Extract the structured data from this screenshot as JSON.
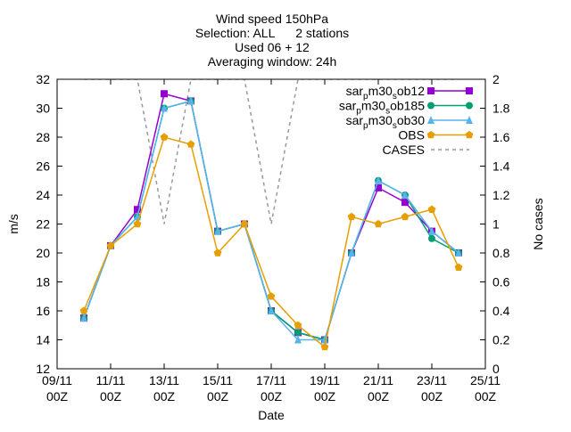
{
  "chart_data": {
    "type": "line",
    "title_lines": [
      "Wind speed 150hPa",
      "Selection: ALL      2 stations",
      "Used 06 + 12",
      "Averaging window: 24h"
    ],
    "xlabel": "Date",
    "ylabel": "m/s",
    "y2label": "No cases",
    "ylim": [
      12,
      32
    ],
    "y2lim": [
      0,
      2
    ],
    "xlim": [
      0,
      16
    ],
    "yticks": [
      12,
      14,
      16,
      18,
      20,
      22,
      24,
      26,
      28,
      30,
      32
    ],
    "y2ticks": [
      0,
      0.2,
      0.4,
      0.6,
      0.8,
      1,
      1.2,
      1.4,
      1.6,
      1.8,
      2
    ],
    "xticks": [
      {
        "x": 0,
        "label": "09/11",
        "sub": "00Z"
      },
      {
        "x": 2,
        "label": "11/11",
        "sub": "00Z"
      },
      {
        "x": 4,
        "label": "13/11",
        "sub": "00Z"
      },
      {
        "x": 6,
        "label": "15/11",
        "sub": "00Z"
      },
      {
        "x": 8,
        "label": "17/11",
        "sub": "00Z"
      },
      {
        "x": 10,
        "label": "19/11",
        "sub": "00Z"
      },
      {
        "x": 12,
        "label": "21/11",
        "sub": "00Z"
      },
      {
        "x": 14,
        "label": "23/11",
        "sub": "00Z"
      },
      {
        "x": 16,
        "label": "25/11",
        "sub": "00Z"
      }
    ],
    "legend_position": "top-right",
    "series": [
      {
        "name": "sar_p m30_s ob12",
        "legend_parts": [
          "sar",
          "p",
          "m30",
          "s",
          "ob12"
        ],
        "color": "#9400d3",
        "marker": "filled-square",
        "x": [
          1,
          2,
          3,
          4,
          5,
          6,
          7,
          8,
          9,
          10,
          11,
          12,
          13,
          14,
          15
        ],
        "y": [
          15.5,
          20.5,
          23.0,
          31.0,
          30.5,
          21.5,
          22.0,
          16.0,
          14.5,
          14.0,
          20.0,
          24.5,
          23.5,
          21.5,
          20.0
        ]
      },
      {
        "name": "sar_p m30_s ob185",
        "legend_parts": [
          "sar",
          "p",
          "m30",
          "s",
          "ob185"
        ],
        "color": "#009e73",
        "marker": "filled-circle",
        "x": [
          1,
          2,
          3,
          4,
          5,
          6,
          7,
          8,
          9,
          10,
          11,
          12,
          13,
          14,
          15
        ],
        "y": [
          15.5,
          20.5,
          22.5,
          30.0,
          30.5,
          21.5,
          22.0,
          16.0,
          14.5,
          14.0,
          20.0,
          25.0,
          24.0,
          21.0,
          20.0
        ]
      },
      {
        "name": "sar_p m30_s ob30",
        "legend_parts": [
          "sar",
          "p",
          "m30",
          "s",
          "ob30"
        ],
        "color": "#56b4e9",
        "marker": "filled-triangle",
        "x": [
          1,
          2,
          3,
          4,
          5,
          6,
          7,
          8,
          9,
          10,
          11,
          12,
          13,
          14,
          15
        ],
        "y": [
          15.5,
          20.5,
          22.5,
          30.0,
          30.5,
          21.5,
          22.0,
          16.0,
          14.0,
          14.0,
          20.0,
          25.0,
          24.0,
          21.5,
          20.0
        ]
      },
      {
        "name": "OBS",
        "color": "#e69f00",
        "marker": "filled-pentagon",
        "x": [
          1,
          2,
          3,
          4,
          5,
          6,
          7,
          8,
          9,
          10,
          11,
          12,
          13,
          14,
          15
        ],
        "y": [
          16.0,
          20.5,
          22.0,
          28.0,
          27.5,
          20.0,
          22.0,
          17.0,
          15.0,
          13.5,
          22.5,
          22.0,
          22.5,
          23.0,
          19.0
        ]
      },
      {
        "name": "CASES",
        "color": "#999999",
        "dashed": true,
        "axis": "y2",
        "x": [
          1,
          2,
          3,
          4,
          5,
          6,
          7,
          8,
          9,
          10,
          11,
          12,
          13,
          14,
          15
        ],
        "y": [
          2,
          2,
          2,
          1,
          2,
          2,
          2,
          1,
          2,
          2,
          2,
          2,
          2,
          2,
          2
        ]
      }
    ]
  }
}
